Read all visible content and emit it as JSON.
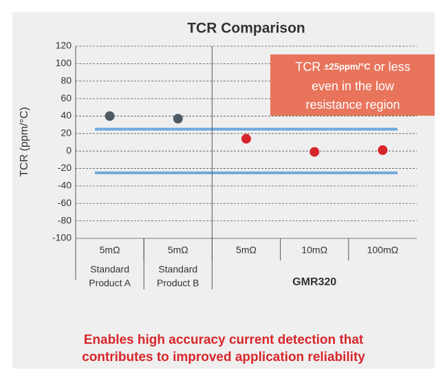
{
  "chart_data": {
    "type": "scatter",
    "title": "TCR Comparison",
    "ylabel": "TCR (ppm/°C)",
    "categories": [
      "5mΩ",
      "5mΩ",
      "5mΩ",
      "10mΩ",
      "100mΩ"
    ],
    "values": [
      40,
      37,
      14,
      -1,
      1
    ],
    "colors": [
      "#4f5b62",
      "#4f5b62",
      "#d7262b",
      "#d7262b",
      "#d7262b"
    ],
    "groups": [
      {
        "lines": [
          "Standard",
          "Product A"
        ],
        "span": [
          0,
          1
        ]
      },
      {
        "lines": [
          "Standard",
          "Product B"
        ],
        "span": [
          1,
          2
        ]
      },
      {
        "lines": [
          "GMR320"
        ],
        "span": [
          2,
          5
        ]
      }
    ],
    "reference_lines": [
      25,
      -25
    ],
    "reference_color": "#6fa8dc",
    "ylim": [
      -100,
      120
    ],
    "yticks": [
      -100,
      -80,
      -60,
      -40,
      -20,
      0,
      20,
      40,
      60,
      80,
      100,
      120
    ],
    "grid": true,
    "annotation": {
      "prefix": "TCR ",
      "highlight": "±25ppm/°C",
      "suffix": " or less",
      "lines": [
        "even in the low",
        "resistance region"
      ]
    },
    "footer": [
      "Enables high accuracy current detection that",
      "contributes to improved application reliability"
    ]
  }
}
